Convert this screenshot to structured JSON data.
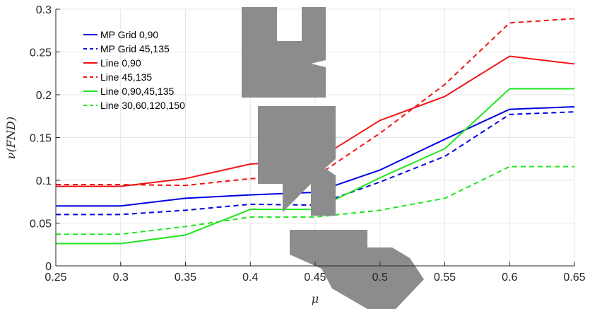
{
  "chart_data": {
    "type": "line",
    "xlabel": "μ",
    "ylabel": "ν(FND)",
    "xlim": [
      0.25,
      0.65
    ],
    "ylim": [
      0,
      0.3
    ],
    "xticks": [
      "0.25",
      "0.3",
      "0.35",
      "0.4",
      "0.45",
      "0.5",
      "0.55",
      "0.6",
      "0.65"
    ],
    "yticks": [
      "0",
      "0.05",
      "0.1",
      "0.15",
      "0.2",
      "0.25",
      "0.3"
    ],
    "x": [
      0.25,
      0.3,
      0.35,
      0.4,
      0.45,
      0.5,
      0.55,
      0.6,
      0.65
    ],
    "grid": true,
    "legend_position": "top-left",
    "series": [
      {
        "name": "MP Grid 0,90",
        "color": "#0000e6",
        "dash": "solid",
        "values": [
          0.07,
          0.07,
          0.079,
          0.083,
          0.086,
          0.112,
          0.148,
          0.183,
          0.186
        ]
      },
      {
        "name": "MP Grid 45,135",
        "color": "#0000e6",
        "dash": "dashed",
        "values": [
          0.06,
          0.06,
          0.065,
          0.072,
          0.071,
          0.098,
          0.128,
          0.177,
          0.18
        ]
      },
      {
        "name": "Line 0,90",
        "color": "#f01414",
        "dash": "solid",
        "values": [
          0.093,
          0.093,
          0.102,
          0.119,
          0.123,
          0.17,
          0.198,
          0.245,
          0.236
        ]
      },
      {
        "name": "Line 45,135",
        "color": "#f01414",
        "dash": "dashed",
        "values": [
          0.095,
          0.095,
          0.094,
          0.102,
          0.104,
          0.155,
          0.212,
          0.284,
          0.289
        ]
      },
      {
        "name": "Line 0,90,45,135",
        "color": "#1ee61e",
        "dash": "solid",
        "values": [
          0.026,
          0.026,
          0.036,
          0.066,
          0.066,
          0.103,
          0.137,
          0.207,
          0.207
        ]
      },
      {
        "name": "Line 30,60,120,150",
        "color": "#1ee61e",
        "dash": "dashed",
        "values": [
          0.037,
          0.037,
          0.046,
          0.057,
          0.057,
          0.065,
          0.079,
          0.116,
          0.116
        ]
      }
    ]
  }
}
